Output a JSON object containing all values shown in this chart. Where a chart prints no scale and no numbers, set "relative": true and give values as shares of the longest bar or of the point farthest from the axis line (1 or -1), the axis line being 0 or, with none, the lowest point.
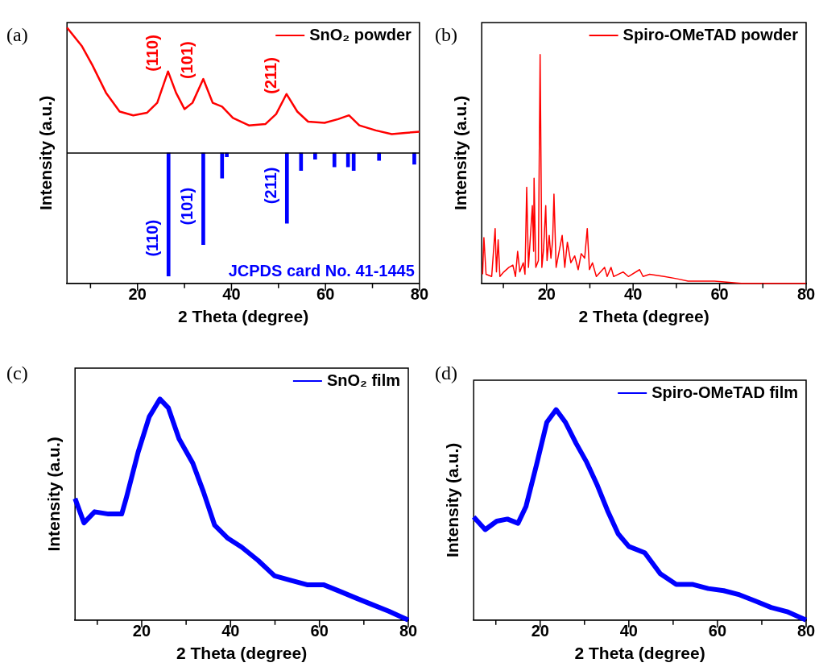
{
  "chart_data": [
    {
      "type": "line",
      "relative": true,
      "xlabel": "2 Theta (degree)",
      "ylabel": "Intensity (a.u.)",
      "xlim": [
        5,
        80
      ],
      "xticks": [
        {
          "value": 10,
          "label": null
        },
        20,
        {
          "value": 30,
          "label": null
        },
        40,
        {
          "value": 50,
          "label": null
        },
        60,
        {
          "value": 70,
          "label": null
        },
        80
      ],
      "legend": "top right",
      "annotations": [
        "(a)",
        {
          "text": "(110)",
          "x": 26.6,
          "y": 0.65
        },
        {
          "text": "(101)",
          "x": 34.0,
          "y": 0.59
        },
        {
          "text": "(211)",
          "x": 51.8,
          "y": 0.47
        },
        {
          "text": "(110)",
          "x": 26.6,
          "y": -0.98
        },
        {
          "text": "(101)",
          "x": 34.0,
          "y": -0.73
        },
        {
          "text": "(211)",
          "x": 51.8,
          "y": -0.56
        }
      ],
      "series": [
        {
          "name": "SnO₂ powder",
          "color": "#ff0000",
          "type": "line",
          "x": [
            5,
            8.2,
            10.4,
            13.3,
            16.2,
            19.1,
            22.0,
            24.2,
            26.5,
            28.2,
            30.0,
            31.7,
            34.0,
            36.0,
            38.0,
            40.3,
            43.7,
            47.2,
            49.5,
            51.7,
            54.0,
            56.3,
            59.8,
            62.7,
            65.0,
            67.2,
            70.7,
            74.1,
            77.0,
            80
          ],
          "values": [
            1.0,
            0.85,
            0.7,
            0.48,
            0.33,
            0.3,
            0.32,
            0.4,
            0.65,
            0.48,
            0.35,
            0.4,
            0.59,
            0.4,
            0.37,
            0.28,
            0.22,
            0.23,
            0.31,
            0.47,
            0.33,
            0.25,
            0.24,
            0.27,
            0.3,
            0.22,
            0.18,
            0.15,
            0.16,
            0.17
          ]
        },
        {
          "name": "JCPDS card No. 41-1445",
          "color": "#0000ff",
          "type": "bar",
          "x": [
            26.6,
            34.0,
            38.0,
            39.0,
            51.8,
            54.8,
            57.8,
            61.9,
            64.8,
            66.0,
            71.4,
            78.9
          ],
          "values": [
            -0.98,
            -0.73,
            -0.2,
            -0.03,
            -0.56,
            -0.14,
            -0.05,
            -0.11,
            -0.11,
            -0.14,
            -0.06,
            -0.09
          ]
        }
      ]
    },
    {
      "type": "line",
      "relative": true,
      "xlabel": "2 Theta (degree)",
      "ylabel": "Intensity (a.u.)",
      "xlim": [
        5,
        80
      ],
      "xticks": [
        {
          "value": 10,
          "label": null
        },
        20,
        {
          "value": 30,
          "label": null
        },
        40,
        {
          "value": 50,
          "label": null
        },
        60,
        {
          "value": 70,
          "label": null
        },
        80
      ],
      "legend": "top right",
      "annotations": [
        "(b)"
      ],
      "series": [
        {
          "name": "Spiro-OMeTAD powder",
          "color": "#ff0000",
          "x": [
            5.2,
            5.5,
            6.0,
            7.3,
            8.1,
            8.4,
            8.8,
            9.2,
            10.1,
            11.3,
            12.2,
            12.8,
            13.3,
            13.8,
            14.6,
            15.0,
            15.4,
            15.8,
            16.3,
            16.7,
            17.0,
            17.1,
            17.5,
            18.1,
            18.5,
            18.9,
            19.3,
            19.8,
            20.1,
            20.6,
            21.0,
            21.4,
            21.7,
            22.2,
            23.0,
            23.6,
            24.2,
            24.8,
            25.6,
            26.5,
            27.3,
            28.0,
            28.8,
            29.4,
            29.9,
            30.6,
            31.5,
            33.4,
            34.0,
            34.9,
            35.5,
            37.7,
            38.9,
            41.5,
            42.3,
            43.8,
            47.2,
            50.2,
            52.7,
            58.8,
            65.0,
            71.1,
            80
          ],
          "values": [
            0.04,
            0.2,
            0.04,
            0.03,
            0.24,
            0.05,
            0.19,
            0.03,
            0.05,
            0.07,
            0.08,
            0.03,
            0.14,
            0.05,
            0.09,
            0.04,
            0.42,
            0.07,
            0.22,
            0.34,
            0.14,
            0.46,
            0.07,
            0.1,
            1.0,
            0.07,
            0.15,
            0.34,
            0.1,
            0.21,
            0.11,
            0.19,
            0.39,
            0.07,
            0.15,
            0.21,
            0.07,
            0.18,
            0.09,
            0.12,
            0.06,
            0.13,
            0.11,
            0.24,
            0.06,
            0.09,
            0.03,
            0.07,
            0.03,
            0.07,
            0.03,
            0.05,
            0.03,
            0.06,
            0.03,
            0.04,
            0.03,
            0.02,
            0.01,
            0.01,
            0.0,
            0.0,
            0.0
          ]
        }
      ]
    },
    {
      "type": "line",
      "relative": true,
      "xlabel": "2 Theta (degree)",
      "ylabel": "Intensity (a.u.)",
      "xlim": [
        5,
        80
      ],
      "xticks": [
        {
          "value": 10,
          "label": null
        },
        20,
        {
          "value": 30,
          "label": null
        },
        40,
        {
          "value": 50,
          "label": null
        },
        60,
        {
          "value": 70,
          "label": null
        },
        80
      ],
      "legend": "top right",
      "annotations": [
        "(c)"
      ],
      "series": [
        {
          "name": "SnO₂ film",
          "color": "#0000ff",
          "x": [
            5.0,
            7.0,
            9.4,
            12.5,
            15.5,
            16.5,
            19.2,
            21.7,
            24.1,
            26.0,
            28.4,
            31.5,
            33.9,
            36.4,
            39.4,
            42.5,
            46.2,
            49.9,
            53.5,
            57.2,
            60.9,
            64.6,
            68.2,
            71.9,
            75.6,
            80
          ],
          "values": [
            0.55,
            0.44,
            0.49,
            0.48,
            0.48,
            0.55,
            0.76,
            0.92,
            1.0,
            0.96,
            0.82,
            0.71,
            0.58,
            0.43,
            0.37,
            0.33,
            0.27,
            0.2,
            0.18,
            0.16,
            0.16,
            0.13,
            0.1,
            0.07,
            0.04,
            0.0
          ]
        }
      ]
    },
    {
      "type": "line",
      "relative": true,
      "xlabel": "2 Theta (degree)",
      "ylabel": "Intensity (a.u.)",
      "xlim": [
        5,
        80
      ],
      "xticks": [
        {
          "value": 10,
          "label": null
        },
        20,
        {
          "value": 30,
          "label": null
        },
        40,
        {
          "value": 50,
          "label": null
        },
        60,
        {
          "value": 70,
          "label": null
        },
        80
      ],
      "legend": "top right",
      "annotations": [
        "(d)"
      ],
      "series": [
        {
          "name": "Spiro-OMeTAD film",
          "color": "#0000ff",
          "x": [
            5.0,
            7.6,
            10.2,
            12.6,
            15.0,
            16.8,
            19.2,
            21.5,
            23.6,
            25.7,
            28.1,
            30.5,
            32.9,
            35.2,
            37.6,
            40.0,
            43.6,
            47.1,
            50.7,
            54.3,
            57.9,
            61.4,
            65.0,
            68.6,
            72.1,
            75.7,
            80
          ],
          "values": [
            0.49,
            0.43,
            0.47,
            0.48,
            0.46,
            0.54,
            0.74,
            0.94,
            1.0,
            0.94,
            0.84,
            0.75,
            0.64,
            0.52,
            0.41,
            0.35,
            0.32,
            0.22,
            0.17,
            0.17,
            0.15,
            0.14,
            0.12,
            0.09,
            0.06,
            0.04,
            0.0
          ]
        }
      ]
    }
  ]
}
